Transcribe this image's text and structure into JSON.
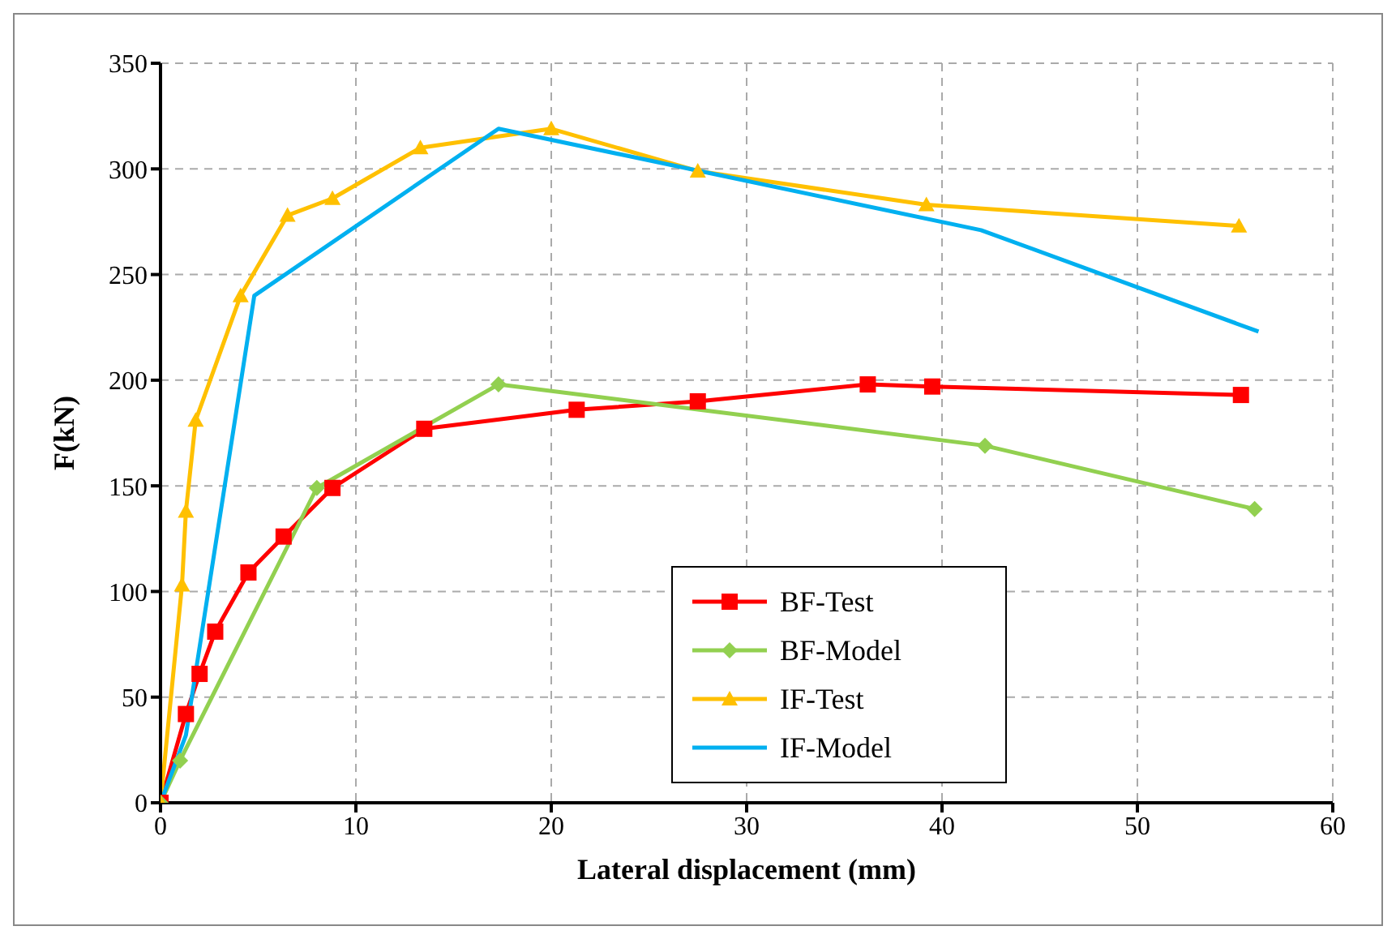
{
  "chart_data": {
    "type": "line",
    "xlabel": "Lateral displacement (mm)",
    "ylabel": "F(kN)",
    "xlim": [
      0,
      60
    ],
    "xticks": [
      0,
      10,
      20,
      30,
      40,
      50,
      60
    ],
    "ylim": [
      0,
      350
    ],
    "yticks": [
      0,
      50,
      100,
      150,
      200,
      250,
      300,
      350
    ],
    "grid": true,
    "legend": "bottom",
    "line_style": "solid",
    "series": [
      {
        "name": "BF-Test",
        "color": "#ff0000",
        "marker": "square",
        "x": [
          0,
          1.3,
          2,
          2.8,
          4.5,
          6.3,
          8.8,
          13.5,
          21.3,
          27.5,
          36.2,
          39.5,
          55.3
        ],
        "values": [
          0,
          42,
          61,
          81,
          109,
          126,
          149,
          177,
          186,
          190,
          198,
          197,
          193
        ]
      },
      {
        "name": "BF-Model",
        "color": "#92d050",
        "marker": "diamond",
        "x": [
          0,
          1,
          8,
          17.3,
          42.2,
          56
        ],
        "values": [
          0,
          20,
          149,
          198,
          169,
          139
        ]
      },
      {
        "name": "IF-Test",
        "color": "#ffc000",
        "marker": "triangle",
        "x": [
          0,
          1.1,
          1.3,
          1.8,
          4.1,
          6.5,
          8.8,
          13.3,
          20,
          27.5,
          39.2,
          55.2
        ],
        "values": [
          0,
          103,
          138,
          181,
          240,
          278,
          286,
          310,
          319,
          299,
          283,
          273
        ]
      },
      {
        "name": "IF-Model",
        "color": "#00b0f0",
        "marker": "none",
        "x": [
          0,
          1.3,
          4.8,
          17.3,
          42,
          56.2
        ],
        "values": [
          0,
          32,
          240,
          319,
          271,
          223
        ]
      }
    ]
  }
}
